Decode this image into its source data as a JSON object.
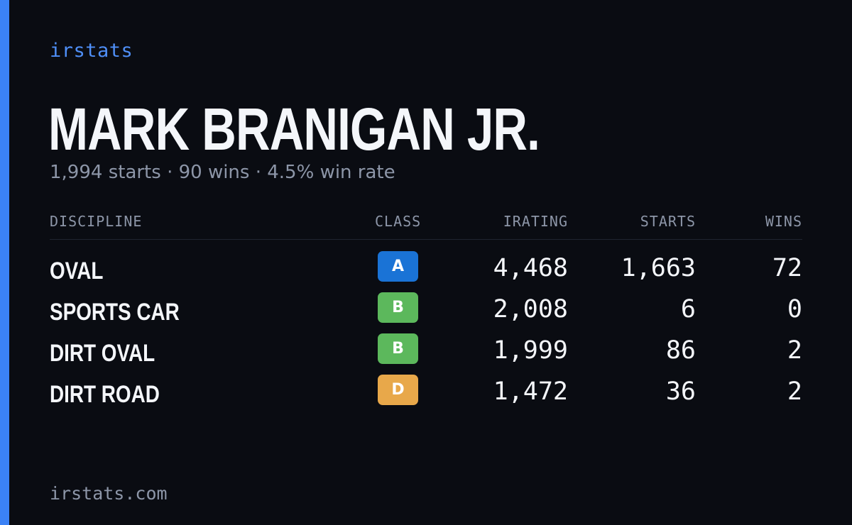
{
  "brand": "irstats",
  "driver": {
    "name": "MARK BRANIGAN JR.",
    "summary": "1,994 starts · 90 wins · 4.5% win rate"
  },
  "table": {
    "headers": {
      "discipline": "DISCIPLINE",
      "class": "CLASS",
      "irating": "IRATING",
      "starts": "STARTS",
      "wins": "WINS"
    },
    "rows": [
      {
        "discipline": "OVAL",
        "class": "A",
        "class_color": "#1a73d6",
        "irating": "4,468",
        "starts": "1,663",
        "wins": "72"
      },
      {
        "discipline": "SPORTS CAR",
        "class": "B",
        "class_color": "#5cb85c",
        "irating": "2,008",
        "starts": "6",
        "wins": "0"
      },
      {
        "discipline": "DIRT OVAL",
        "class": "B",
        "class_color": "#5cb85c",
        "irating": "1,999",
        "starts": "86",
        "wins": "2"
      },
      {
        "discipline": "DIRT ROAD",
        "class": "D",
        "class_color": "#e8a84a",
        "irating": "1,472",
        "starts": "36",
        "wins": "2"
      }
    ]
  },
  "footer": "irstats.com",
  "colors": {
    "background": "#0a0c12",
    "accent": "#3b82f6",
    "muted": "#8d96a8",
    "text": "#f4f6fa"
  }
}
